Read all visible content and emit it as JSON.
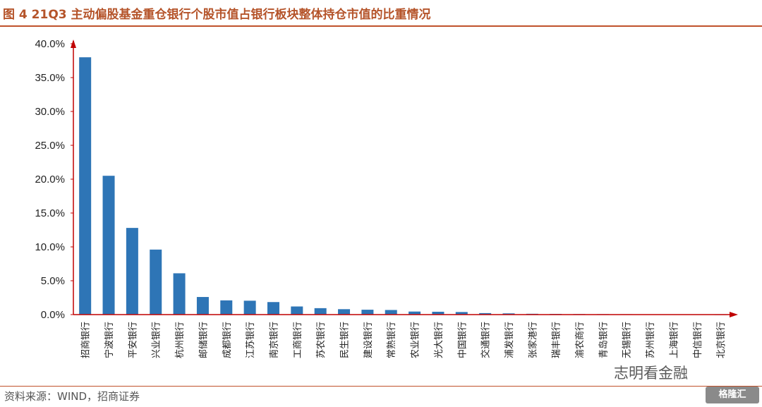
{
  "header": {
    "title": "图 4 21Q3 主动偏股基金重仓银行个股市值占银行板块整体持仓市值的比重情况"
  },
  "footer": {
    "source": "资料来源：WIND，招商证券"
  },
  "watermark": {
    "text": "志明看金融",
    "logo_text": "格隆汇"
  },
  "colors": {
    "bar": "#2e75b6",
    "axis": "#c00000",
    "title": "#b5542a"
  },
  "chart_data": {
    "type": "bar",
    "title": "",
    "xlabel": "",
    "ylabel": "",
    "ylim": [
      0,
      40
    ],
    "yticks": [
      "0.0%",
      "5.0%",
      "10.0%",
      "15.0%",
      "20.0%",
      "25.0%",
      "30.0%",
      "35.0%",
      "40.0%"
    ],
    "grid": false,
    "legend": "none",
    "categories": [
      "招商银行",
      "宁波银行",
      "平安银行",
      "兴业银行",
      "杭州银行",
      "邮储银行",
      "成都银行",
      "江苏银行",
      "南京银行",
      "工商银行",
      "苏农银行",
      "民生银行",
      "建设银行",
      "常熟银行",
      "农业银行",
      "光大银行",
      "中国银行",
      "交通银行",
      "浦发银行",
      "张家港行",
      "瑞丰银行",
      "渝农商行",
      "青岛银行",
      "无锡银行",
      "苏州银行",
      "上海银行",
      "中信银行",
      "北京银行"
    ],
    "values": [
      38.0,
      20.5,
      12.8,
      9.6,
      6.1,
      2.6,
      2.1,
      2.05,
      1.85,
      1.2,
      0.95,
      0.8,
      0.72,
      0.68,
      0.45,
      0.42,
      0.38,
      0.22,
      0.18,
      0.12,
      0.1,
      0.08,
      0.07,
      0.06,
      0.05,
      0.04,
      0.03,
      0.02
    ]
  }
}
